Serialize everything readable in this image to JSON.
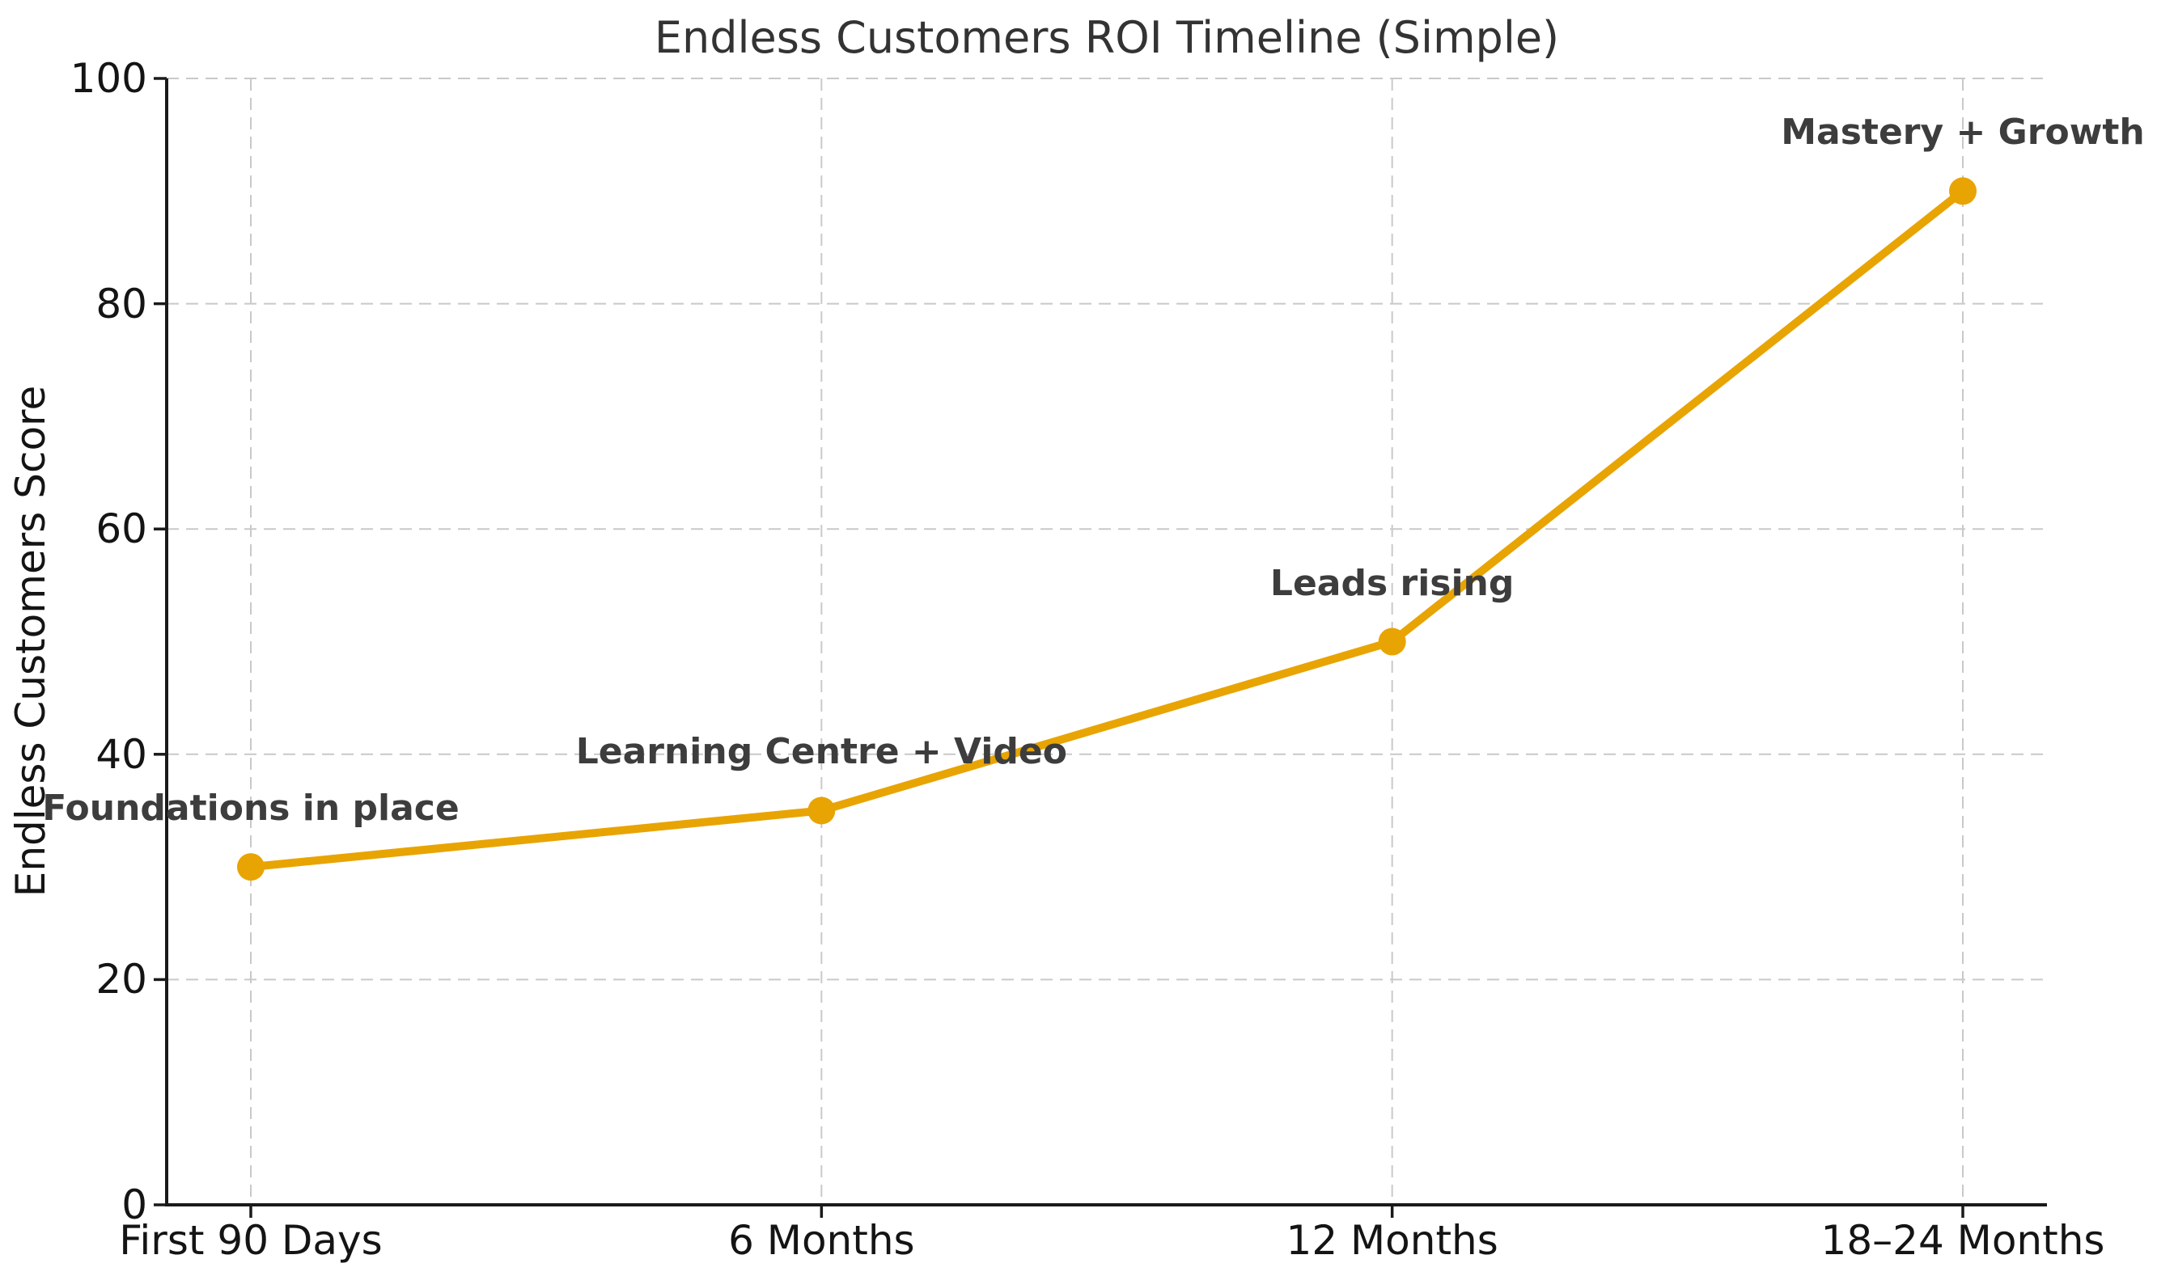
{
  "chart_data": {
    "type": "line",
    "title": "Endless Customers ROI Timeline (Simple)",
    "xlabel": "",
    "ylabel": "Endless Customers Score",
    "categories": [
      "First 90 Days",
      "6 Months",
      "12 Months",
      "18–24 Months"
    ],
    "series": [
      {
        "name": "Endless Customers Score",
        "values": [
          30,
          35,
          50,
          90
        ]
      }
    ],
    "annotations": [
      {
        "index": 0,
        "label": "Foundations in place",
        "value": 30
      },
      {
        "index": 1,
        "label": "Learning Centre + Video",
        "value": 35
      },
      {
        "index": 2,
        "label": "Leads rising",
        "value": 50
      },
      {
        "index": 3,
        "label": "Mastery + Growth",
        "value": 90
      }
    ],
    "ylim": [
      0,
      100
    ],
    "yticks": [
      0,
      20,
      40,
      60,
      80,
      100
    ],
    "grid": true,
    "grid_style": "dashed",
    "legend": "none",
    "colors": {
      "line": "#E8A402",
      "marker": "#E8A402",
      "grid": "#c9c9c9",
      "axis": "#1a1a1a",
      "title_text": "#333333",
      "tick_text": "#141414",
      "annotation_text": "#3d3d3d",
      "background": "#ffffff"
    }
  }
}
